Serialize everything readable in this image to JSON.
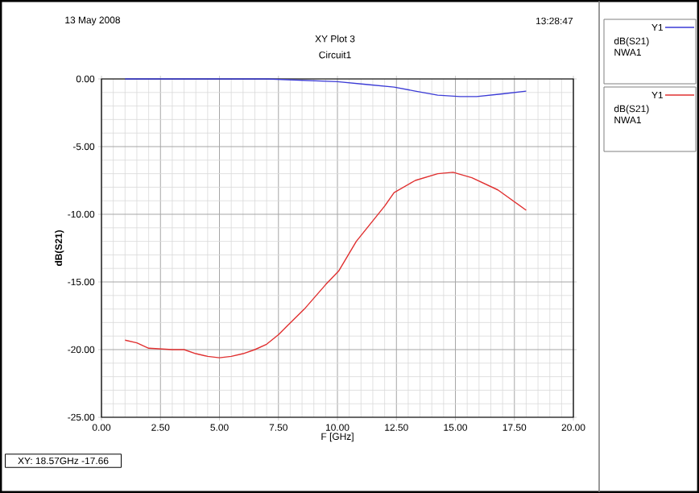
{
  "chart_data": {
    "type": "line",
    "title": "XY Plot 3",
    "subtitle": "Circuit1",
    "xlabel": "F [GHz]",
    "ylabel": "dB(S21)",
    "annotations": [
      "13 May 2008",
      "13:28:47",
      "XY: 18.57GHz -17.66",
      "Y1",
      "Y1"
    ],
    "xlim": [
      0,
      20
    ],
    "ylim": [
      -25,
      0
    ],
    "xticks": [
      {
        "value": 0,
        "label": "0.00"
      },
      {
        "value": 2.5,
        "label": "2.50"
      },
      {
        "value": 5,
        "label": "5.00"
      },
      {
        "value": 7.5,
        "label": "7.50"
      },
      {
        "value": 10,
        "label": "10.00"
      },
      {
        "value": 12.5,
        "label": "12.50"
      },
      {
        "value": 15,
        "label": "15.00"
      },
      {
        "value": 17.5,
        "label": "17.50"
      },
      {
        "value": 20,
        "label": "20.00"
      }
    ],
    "yticks": [
      {
        "value": -25,
        "label": "-25.00"
      },
      {
        "value": -20,
        "label": "-20.00"
      },
      {
        "value": -15,
        "label": "-15.00"
      },
      {
        "value": -10,
        "label": "-10.00"
      },
      {
        "value": -5,
        "label": "-5.00"
      },
      {
        "value": 0,
        "label": "0.00"
      }
    ],
    "grid": true,
    "legend": "right",
    "series": [
      {
        "name": "dB(S21) NWA1",
        "color": "#3b3bd6",
        "x": [
          1.0,
          3.0,
          5.0,
          7.0,
          8.5,
          10.0,
          11.2,
          12.4,
          13.3,
          14.25,
          15.2,
          15.9,
          17.0,
          18.0
        ],
        "values": [
          0.0,
          0.0,
          0.0,
          0.0,
          -0.1,
          -0.2,
          -0.4,
          -0.6,
          -0.9,
          -1.2,
          -1.3,
          -1.3,
          -1.1,
          -0.9
        ]
      },
      {
        "name": "dB(S21) NWA1",
        "color": "#e03030",
        "x": [
          1.0,
          1.5,
          2.0,
          3.0,
          3.5,
          4.0,
          4.5,
          5.0,
          5.5,
          6.0,
          6.5,
          7.0,
          7.5,
          7.9,
          8.6,
          9.5,
          10.05,
          10.8,
          12.0,
          12.4,
          13.3,
          14.25,
          14.9,
          15.7,
          16.8,
          18.0
        ],
        "values": [
          -19.3,
          -19.5,
          -19.9,
          -20.0,
          -20.0,
          -20.3,
          -20.5,
          -20.6,
          -20.5,
          -20.3,
          -20.0,
          -19.6,
          -18.9,
          -18.2,
          -17.0,
          -15.2,
          -14.2,
          -12.0,
          -9.4,
          -8.4,
          -7.5,
          -7.0,
          -6.9,
          -7.3,
          -8.2,
          -9.7
        ]
      }
    ]
  }
}
